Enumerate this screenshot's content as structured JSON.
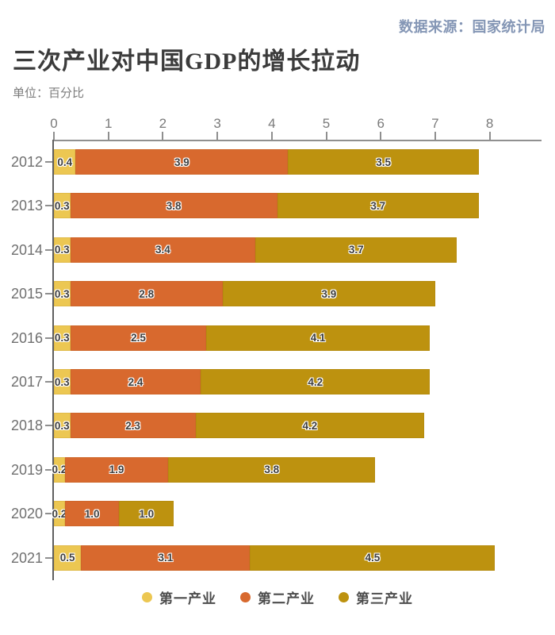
{
  "header": {
    "source": "数据来源：国家统计局",
    "title": "三次产业对中国GDP的增长拉动",
    "unit": "单位：百分比"
  },
  "chart_data": {
    "type": "bar",
    "orientation": "horizontal",
    "stacked": true,
    "title": "三次产业对中国GDP的增长拉动",
    "unit": "百分比",
    "categories": [
      "2012",
      "2013",
      "2014",
      "2015",
      "2016",
      "2017",
      "2018",
      "2019",
      "2020",
      "2021"
    ],
    "series": [
      {
        "name": "第一产业",
        "color": "#ecc752",
        "values": [
          0.4,
          0.3,
          0.3,
          0.3,
          0.3,
          0.3,
          0.3,
          0.2,
          0.2,
          0.5
        ]
      },
      {
        "name": "第二产业",
        "color": "#d8692e",
        "values": [
          3.9,
          3.8,
          3.4,
          2.8,
          2.5,
          2.4,
          2.3,
          1.9,
          1.0,
          3.1
        ]
      },
      {
        "name": "第三产业",
        "color": "#bd920f",
        "values": [
          3.5,
          3.7,
          3.7,
          3.9,
          4.1,
          4.2,
          4.2,
          3.8,
          1.0,
          4.5
        ]
      }
    ],
    "x_ticks": [
      0,
      1,
      2,
      3,
      4,
      5,
      6,
      7,
      8
    ],
    "xlim": [
      0,
      8.95
    ],
    "grid": false,
    "legend_position": "bottom",
    "value_labels": true
  },
  "colors": {
    "primary_industry": "#ecc752",
    "secondary_industry": "#d8692e",
    "tertiary_industry": "#bd920f",
    "source_text": "#8496b5",
    "title_text": "#3b3b3b",
    "axis_text": "#7a7a7a"
  }
}
